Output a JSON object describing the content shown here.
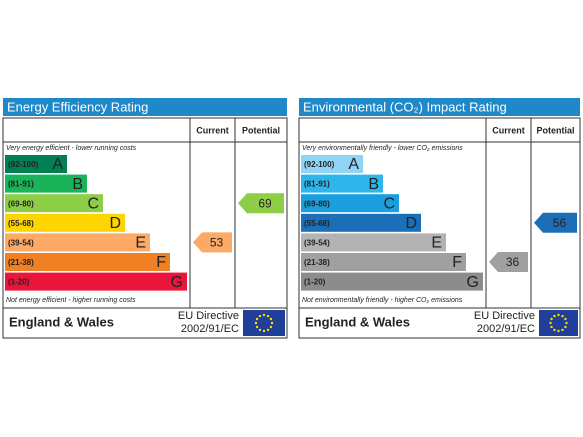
{
  "panels": [
    {
      "title": "Energy Efficiency Rating",
      "current_header": "Current",
      "potential_header": "Potential",
      "top_note": "Very energy efficient - lower running costs",
      "bands": [
        {
          "range": "(92-100)",
          "letter": "A",
          "color": "#008054"
        },
        {
          "range": "(81-91)",
          "letter": "B",
          "color": "#19b459"
        },
        {
          "range": "(69-80)",
          "letter": "C",
          "color": "#8dce46"
        },
        {
          "range": "(55-68)",
          "letter": "D",
          "color": "#ffd500"
        },
        {
          "range": "(39-54)",
          "letter": "E",
          "color": "#fcaa65"
        },
        {
          "range": "(21-38)",
          "letter": "F",
          "color": "#ef8023"
        },
        {
          "range": "(1-20)",
          "letter": "G",
          "color": "#e9153b"
        }
      ],
      "bottom_note": "Not energy efficient - higher running costs",
      "current": 53,
      "potential": 69,
      "region": "England & Wales",
      "directive": [
        "EU Directive",
        "2002/91/EC"
      ]
    },
    {
      "title": "Environmental (CO₂) Impact Rating",
      "current_header": "Current",
      "potential_header": "Potential",
      "top_note": "Very environmentally friendly - lower CO₂ emissions",
      "bands": [
        {
          "range": "(92-100)",
          "letter": "A",
          "color": "#8fd3f5"
        },
        {
          "range": "(81-91)",
          "letter": "B",
          "color": "#2fb5ec"
        },
        {
          "range": "(69-80)",
          "letter": "C",
          "color": "#1a9fde"
        },
        {
          "range": "(55-68)",
          "letter": "D",
          "color": "#1b6fb8"
        },
        {
          "range": "(39-54)",
          "letter": "E",
          "color": "#b3b3b3"
        },
        {
          "range": "(21-38)",
          "letter": "F",
          "color": "#a0a0a0"
        },
        {
          "range": "(1-20)",
          "letter": "G",
          "color": "#8c8c8c"
        }
      ],
      "bottom_note": "Not environmentally friendly - higher CO₂ emissions",
      "current": 36,
      "potential": 56,
      "region": "England & Wales",
      "directive": [
        "EU Directive",
        "2002/91/EC"
      ]
    }
  ]
}
